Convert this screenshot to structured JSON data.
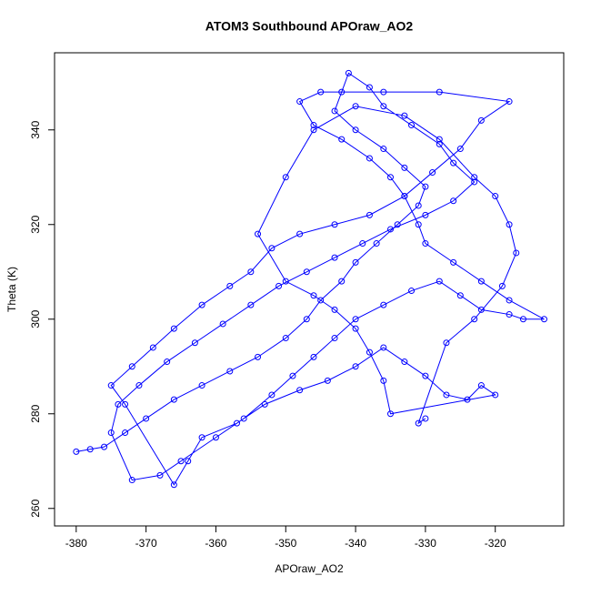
{
  "chart_data": {
    "type": "line",
    "title": "ATOM3 Southbound APOraw_AO2",
    "x_label": "APOraw_AO2",
    "y_label": "Theta (K)",
    "xlim": [
      -383.1,
      -310.2
    ],
    "ylim": [
      256.3,
      356.3
    ],
    "xticks": [
      -380,
      -370,
      -360,
      -350,
      -340,
      -330,
      -320
    ],
    "yticks": [
      260,
      280,
      300,
      320,
      340
    ],
    "markers": true,
    "series": [
      {
        "name": "APOraw_AO2",
        "color": "#0000ff",
        "x": [
          -380,
          -378,
          -376,
          -373,
          -370,
          -366,
          -362,
          -358,
          -354,
          -350,
          -347,
          -345,
          -342,
          -340,
          -337,
          -334,
          -331,
          -330,
          -333,
          -336,
          -340,
          -343,
          -342,
          -341,
          -338,
          -336,
          -332,
          -328,
          -326,
          -323,
          -326,
          -330,
          -335,
          -339,
          -343,
          -347,
          -351,
          -355,
          -359,
          -363,
          -367,
          -371,
          -374,
          -375,
          -372,
          -368,
          -365,
          -360,
          -356,
          -352,
          -349,
          -346,
          -343,
          -340,
          -336,
          -332,
          -328,
          -325,
          -322,
          -318,
          -316,
          -313,
          -318,
          -322,
          -326,
          -330,
          -331,
          -333,
          -335,
          -338,
          -342,
          -346,
          -348,
          -345,
          -336,
          -328,
          -318,
          -322,
          -325,
          -329,
          -333,
          -338,
          -343,
          -348,
          -352,
          -355,
          -358,
          -362,
          -366,
          -369,
          -372,
          -375,
          -373,
          -366,
          -364,
          -362,
          -357,
          -353,
          -348,
          -344,
          -340,
          -336,
          -333,
          -330,
          -327,
          -324,
          -322,
          -320,
          -335,
          -336,
          -338,
          -340,
          -343,
          -346,
          -350,
          -354,
          -350,
          -346,
          -340,
          -333,
          -328,
          -323,
          -320,
          -318,
          -317,
          -319,
          -323,
          -327,
          -331,
          -330
        ],
        "values": [
          272,
          272.5,
          273,
          276,
          279,
          283,
          286,
          289,
          292,
          296,
          300,
          304,
          308,
          312,
          316,
          320,
          324,
          328,
          332,
          336,
          340,
          344,
          348,
          352,
          349,
          345,
          341,
          337,
          333,
          329,
          325,
          322,
          319,
          316,
          313,
          310,
          307,
          303,
          299,
          295,
          291,
          286,
          282,
          276,
          266,
          267,
          270,
          275,
          279,
          284,
          288,
          292,
          296,
          300,
          303,
          306,
          308,
          305,
          302,
          301,
          300,
          300,
          304,
          308,
          312,
          316,
          320,
          326,
          330,
          334,
          338,
          341,
          346,
          348,
          348,
          348,
          346,
          342,
          336,
          331,
          326,
          322,
          320,
          318,
          315,
          310,
          307,
          303,
          298,
          294,
          290,
          286,
          282,
          265,
          270,
          275,
          278,
          282,
          285,
          287,
          290,
          294,
          291,
          288,
          284,
          283,
          286,
          284,
          280,
          287,
          293,
          298,
          302,
          305,
          308,
          318,
          330,
          340,
          345,
          343,
          338,
          330,
          326,
          320,
          314,
          307,
          300,
          295,
          278,
          279
        ]
      }
    ]
  }
}
